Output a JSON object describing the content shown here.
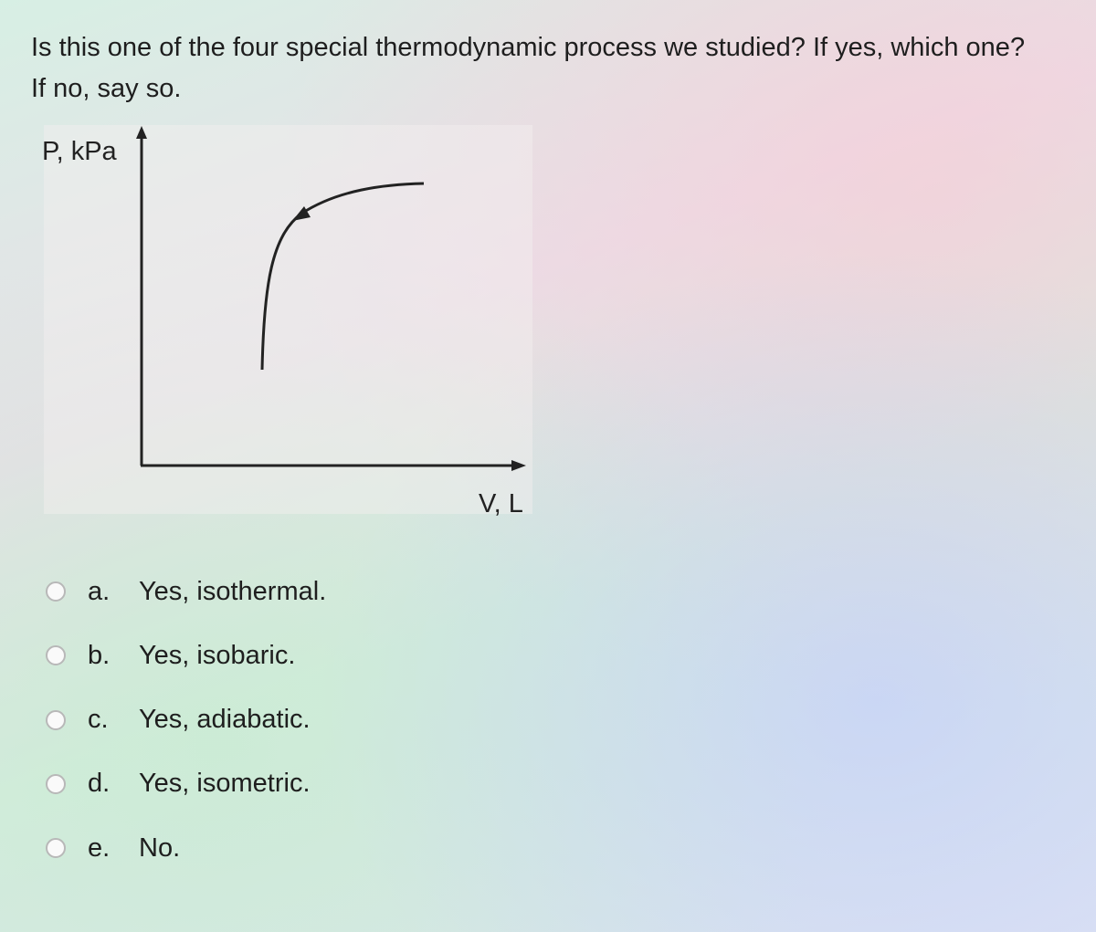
{
  "question": "Is this one of the four special thermodynamic process we studied? If yes, which one? If no, say so.",
  "diagram": {
    "y_axis_label": "P, kPa",
    "x_axis_label": "V, L"
  },
  "options": [
    {
      "letter": "a.",
      "text": "Yes, isothermal."
    },
    {
      "letter": "b.",
      "text": "Yes, isobaric."
    },
    {
      "letter": "c.",
      "text": "Yes, adiabatic."
    },
    {
      "letter": "d.",
      "text": "Yes, isometric."
    },
    {
      "letter": "e.",
      "text": "No."
    }
  ]
}
